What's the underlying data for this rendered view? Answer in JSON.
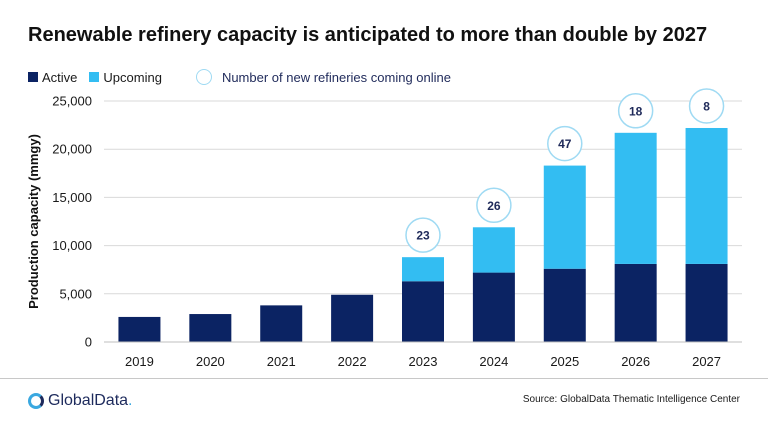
{
  "title": "Renewable refinery capacity is anticipated to more than double by 2027",
  "legend": {
    "active": "Active",
    "upcoming": "Upcoming",
    "refineries": "Number of new refineries coming online"
  },
  "footer": {
    "logo_text": "GlobalData",
    "logo_dot": ".",
    "source": "Source: GlobalData Thematic Intelligence Center"
  },
  "colors": {
    "active": "#0b2363",
    "upcoming": "#33bdf2",
    "circle_border": "#9fdaf3",
    "grid": "#d9d9d9"
  },
  "chart_data": {
    "type": "bar",
    "stacked": true,
    "categories": [
      "2019",
      "2020",
      "2021",
      "2022",
      "2023",
      "2024",
      "2025",
      "2026",
      "2027"
    ],
    "series": [
      {
        "name": "Active",
        "values": [
          2600,
          2900,
          3800,
          4900,
          6300,
          7200,
          7600,
          8100,
          8100
        ]
      },
      {
        "name": "Upcoming",
        "values": [
          0,
          0,
          0,
          0,
          2500,
          4700,
          10700,
          13600,
          14100
        ]
      }
    ],
    "annotations": {
      "name": "Number of new refineries coming online",
      "values": [
        null,
        null,
        null,
        null,
        23,
        26,
        47,
        18,
        8
      ]
    },
    "ylabel": "Production capacity (mmgy)",
    "xlabel": "",
    "ylim": [
      0,
      25000
    ],
    "yticks": [
      0,
      5000,
      10000,
      15000,
      20000,
      25000
    ],
    "ytick_labels": [
      "0",
      "5,000",
      "10,000",
      "15,000",
      "20,000",
      "25,000"
    ],
    "grid": true,
    "legend_position": "top-left"
  }
}
